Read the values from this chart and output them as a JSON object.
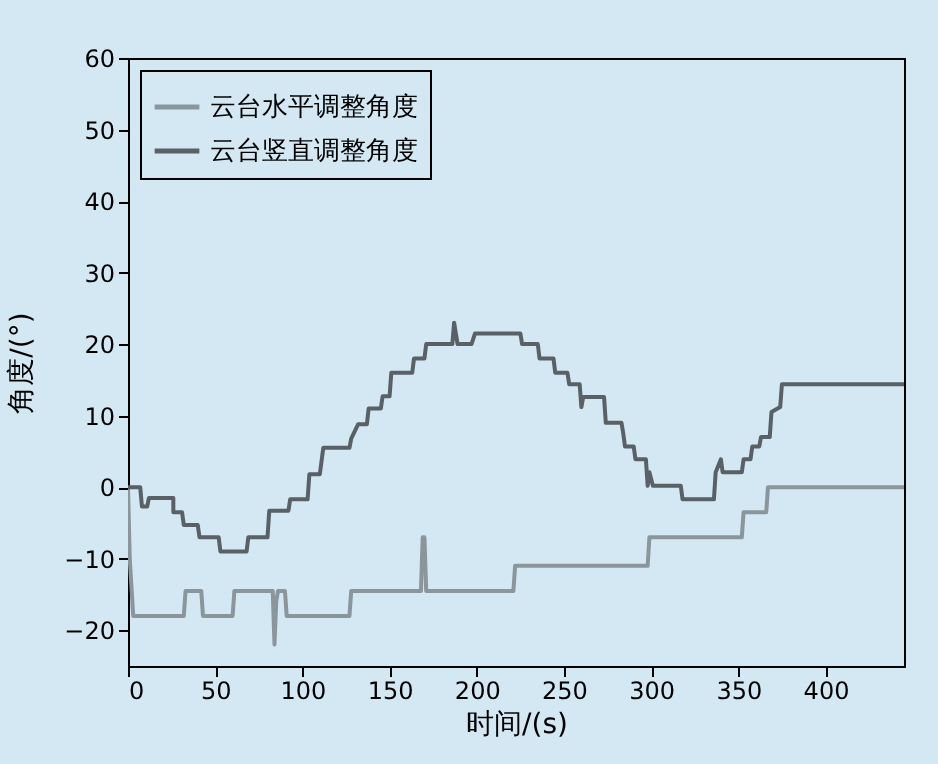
{
  "chart_data": {
    "type": "line",
    "xlabel": "时间/(s)",
    "ylabel": "角度/(°)",
    "xlim": [
      0,
      445
    ],
    "ylim": [
      -25,
      60
    ],
    "xticks": [
      0,
      50,
      100,
      150,
      200,
      250,
      300,
      350,
      400
    ],
    "yticks": [
      -20,
      -10,
      0,
      10,
      20,
      30,
      40,
      50,
      60
    ],
    "grid": false,
    "legend": "top left",
    "marker": "none",
    "line_style": "solid",
    "series": [
      {
        "name": "云台水平调整角度",
        "color": "#8a959c",
        "x": [
          0,
          1,
          3,
          32,
          33,
          42,
          43,
          60,
          61,
          83,
          84,
          85,
          86,
          90,
          91,
          127,
          128,
          168,
          169,
          170,
          171,
          221,
          222,
          298,
          299,
          352,
          353,
          366,
          367,
          445
        ],
        "values": [
          0,
          -10,
          -18,
          -18,
          -14.5,
          -14.5,
          -18,
          -18,
          -14.5,
          -14.5,
          -22,
          -16,
          -14.5,
          -14.5,
          -18,
          -18,
          -14.5,
          -14.5,
          -7,
          -7,
          -14.5,
          -14.5,
          -11,
          -11,
          -7,
          -7,
          -3.5,
          -3.5,
          0,
          0
        ]
      },
      {
        "name": "云台竖直调整角度",
        "color": "#596066",
        "x": [
          0,
          7,
          8,
          11,
          12,
          26,
          26,
          31,
          32,
          40,
          41,
          52,
          53,
          68,
          69,
          80,
          81,
          92,
          93,
          103,
          104,
          110,
          112,
          127,
          128,
          132,
          137,
          138,
          145,
          146,
          150,
          151,
          163,
          164,
          170,
          171,
          186,
          187,
          189,
          197,
          199,
          225,
          226,
          235,
          236,
          244,
          245,
          252,
          253,
          259,
          260,
          261,
          273,
          274,
          283,
          284,
          285,
          290,
          291,
          297,
          298,
          299,
          301,
          317,
          318,
          336,
          337,
          340,
          341,
          352,
          353,
          357,
          358,
          362,
          363,
          368,
          369,
          374,
          375,
          445
        ],
        "values": [
          0,
          0,
          -2.7,
          -2.7,
          -1.5,
          -1.5,
          -3.5,
          -3.5,
          -5.3,
          -5.3,
          -7,
          -7,
          -9,
          -9,
          -7,
          -7,
          -3.3,
          -3.3,
          -1.7,
          -1.7,
          1.8,
          1.8,
          5.5,
          5.5,
          6.8,
          8.8,
          8.8,
          11,
          11,
          12.7,
          12.7,
          16,
          16,
          18,
          18,
          20,
          20,
          23,
          20,
          20,
          21.5,
          21.5,
          20,
          20,
          18,
          18,
          16,
          16,
          14.4,
          14.4,
          11.2,
          12.6,
          12.6,
          9,
          9,
          7.5,
          5.7,
          5.7,
          3.9,
          3.9,
          0.2,
          2.1,
          0.2,
          0.2,
          -1.7,
          -1.7,
          2.1,
          3.9,
          2.1,
          2.1,
          3.9,
          3.9,
          5.7,
          5.7,
          7,
          7,
          10.5,
          11.2,
          14.4,
          14.4
        ]
      }
    ]
  }
}
